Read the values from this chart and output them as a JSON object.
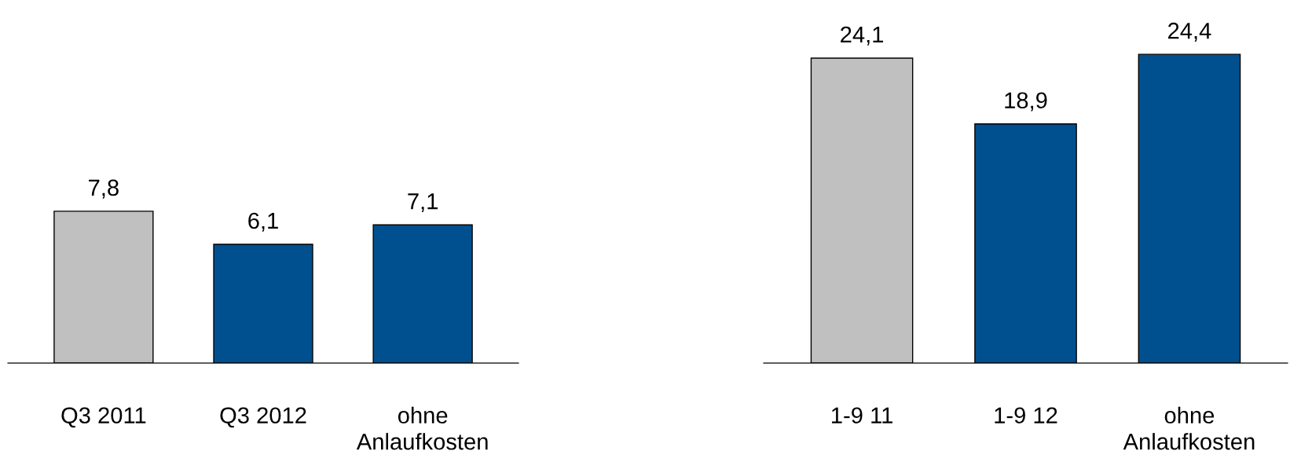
{
  "chart_data": [
    {
      "type": "bar",
      "categories": [
        "Q3 2011",
        "Q3 2012",
        "ohne\nAnlaufkosten"
      ],
      "values": [
        7.8,
        6.1,
        7.1
      ],
      "colors": [
        "#c0c0c0",
        "#00508f",
        "#00508f"
      ],
      "value_labels": [
        "7,8",
        "6,1",
        "7,1"
      ]
    },
    {
      "type": "bar",
      "categories": [
        "1-9 11",
        "1-9 12",
        "ohne\nAnlaufkosten"
      ],
      "values": [
        24.1,
        18.9,
        24.4
      ],
      "colors": [
        "#c0c0c0",
        "#00508f",
        "#00508f"
      ],
      "value_labels": [
        "24,1",
        "18,9",
        "24,4"
      ]
    }
  ]
}
